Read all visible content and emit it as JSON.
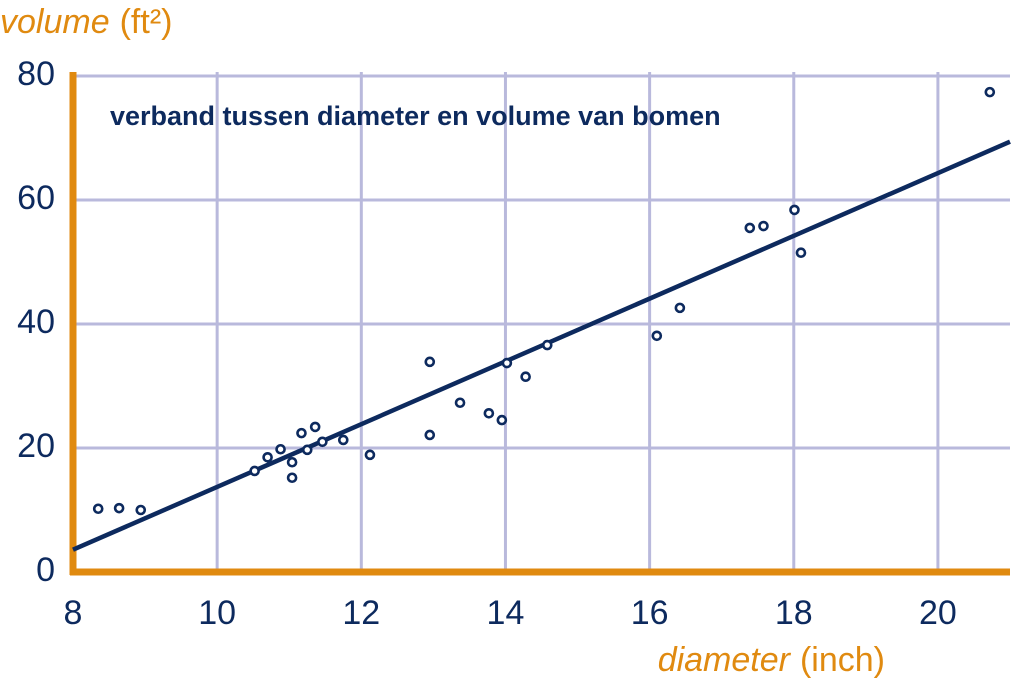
{
  "chart_data": {
    "type": "scatter",
    "title": "verband tussen diameter en volume van bomen",
    "xlabel": "diameter",
    "xunit": "(inch)",
    "ylabel": "volume",
    "yunit": "(ft²)",
    "x": [
      8.35,
      8.64,
      8.94,
      10.52,
      10.7,
      10.88,
      11.04,
      11.04,
      11.17,
      11.25,
      11.36,
      11.46,
      11.75,
      12.12,
      12.95,
      12.95,
      13.37,
      13.77,
      13.95,
      14.02,
      14.28,
      14.58,
      16.1,
      16.42,
      17.39,
      17.58,
      18.01,
      18.1,
      20.72
    ],
    "values": [
      10.2,
      10.3,
      10.0,
      16.3,
      18.5,
      19.8,
      15.2,
      17.7,
      22.4,
      19.7,
      23.4,
      21.0,
      21.3,
      18.9,
      33.9,
      22.1,
      27.3,
      25.6,
      24.5,
      33.7,
      31.5,
      36.6,
      38.1,
      42.6,
      55.5,
      55.8,
      58.4,
      51.5,
      77.4
    ],
    "color": "#0d2a5e",
    "fit_line": {
      "x": [
        8,
        21
      ],
      "values": [
        3.6,
        69.4
      ],
      "color": "#0d2a5e"
    },
    "xlim": [
      8,
      21
    ],
    "ylim": [
      0,
      80
    ],
    "xticks": [
      8,
      10,
      12,
      14,
      16,
      18,
      20
    ],
    "yticks": [
      0,
      20,
      40,
      60,
      80
    ],
    "grid": true,
    "axis_color": "#e08a10",
    "grid_color": "#b9b9dc"
  }
}
